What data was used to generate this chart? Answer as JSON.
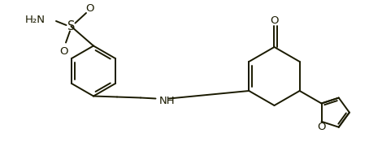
{
  "bg_color": "#ffffff",
  "line_color": "#1a1a00",
  "bond_lw": 1.4,
  "font_size": 9.5,
  "fig_width": 4.7,
  "fig_height": 1.8,
  "dpi": 100,
  "xlim": [
    0,
    9.4
  ],
  "ylim": [
    0,
    3.6
  ]
}
